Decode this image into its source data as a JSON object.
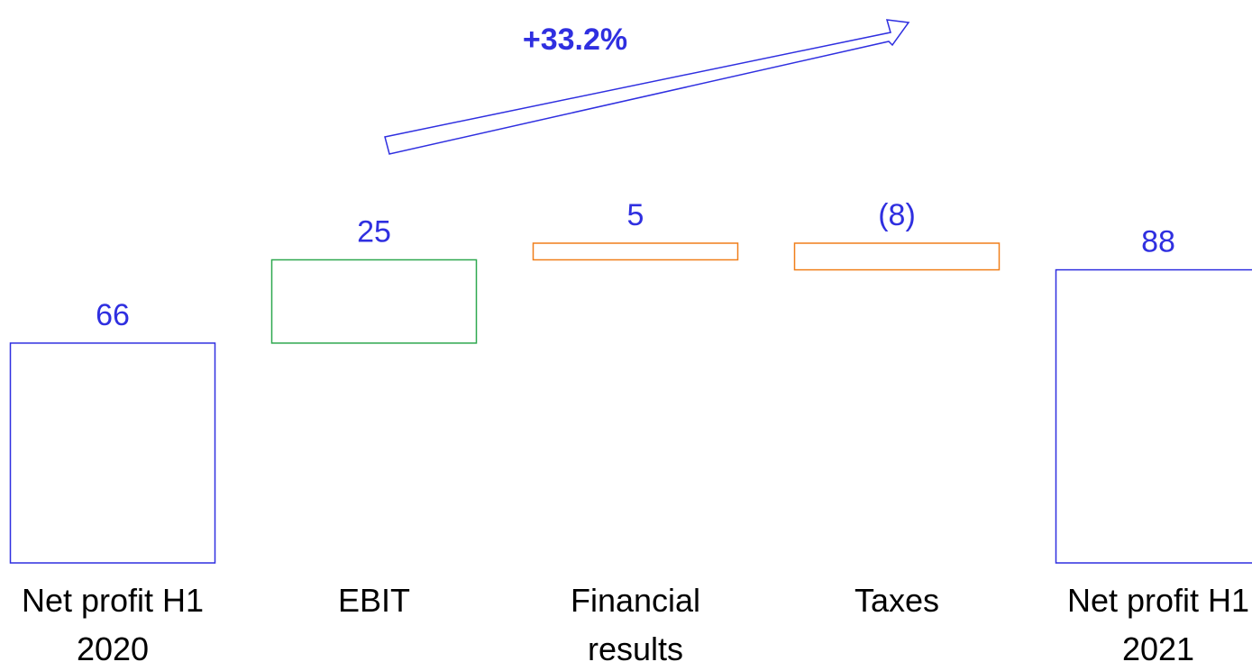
{
  "chart_data": {
    "type": "waterfall",
    "categories": [
      "Net profit H1 2020",
      "EBIT",
      "Financial results",
      "Taxes",
      "Net profit H1 2021"
    ],
    "values": [
      66,
      25,
      5,
      -8,
      88
    ],
    "value_labels": [
      "66",
      "25",
      "5",
      "(8)",
      "88"
    ],
    "totals": [
      true,
      false,
      false,
      false,
      true
    ],
    "colors": [
      "#2f2fe0",
      "#2ea84f",
      "#f07f1a",
      "#f07f1a",
      "#2f2fe0"
    ],
    "label_color": "#2f2fe0",
    "annotation": "+33.2%"
  }
}
